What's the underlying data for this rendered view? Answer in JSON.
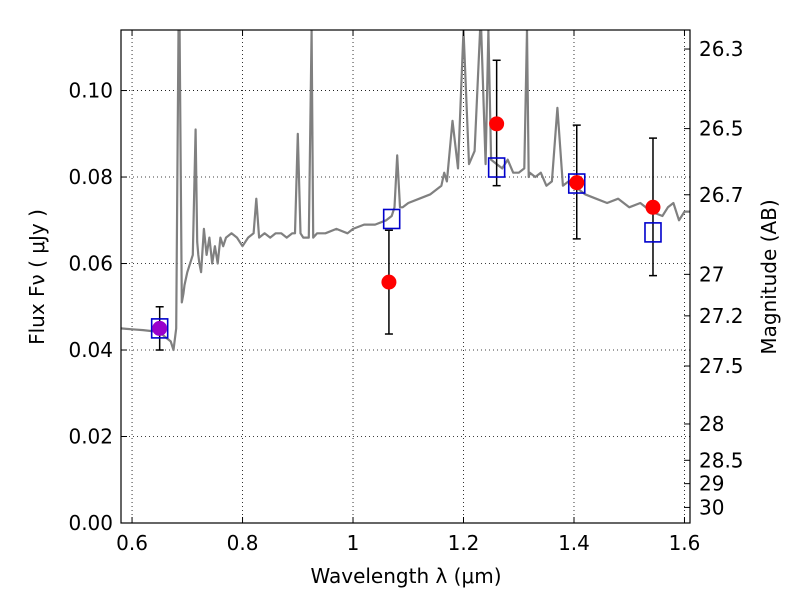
{
  "chart_data": {
    "type": "scatter",
    "xlabel": "Wavelength  λ (μm)",
    "ylabel": "Flux  Fν  ( μJy )",
    "y2label": "Magnitude (AB)",
    "xlim": [
      0.58,
      1.61
    ],
    "ylim": [
      0.0,
      0.114
    ],
    "grid": true,
    "xticks": [
      0.6,
      0.8,
      1.0,
      1.2,
      1.4,
      1.6
    ],
    "xtick_labels": [
      "0.6",
      "0.8",
      "1",
      "1.2",
      "1.4",
      "1.6"
    ],
    "yticks": [
      0.0,
      0.02,
      0.04,
      0.06,
      0.08,
      0.1
    ],
    "ytick_labels": [
      "0.00",
      "0.02",
      "0.04",
      "0.06",
      "0.08",
      "0.10"
    ],
    "y2ticks": [
      {
        "label": "26.3",
        "flux": 0.1096
      },
      {
        "label": "26.5",
        "flux": 0.0912
      },
      {
        "label": "26.7",
        "flux": 0.0759
      },
      {
        "label": "27",
        "flux": 0.0575
      },
      {
        "label": "27.2",
        "flux": 0.0479
      },
      {
        "label": "27.5",
        "flux": 0.0363
      },
      {
        "label": "28",
        "flux": 0.0229
      },
      {
        "label": "28.5",
        "flux": 0.0145
      },
      {
        "label": "29",
        "flux": 0.0091
      },
      {
        "label": "30",
        "flux": 0.0036
      }
    ],
    "series": [
      {
        "style": "line",
        "color": "#808080",
        "x": [
          0.58,
          0.6,
          0.62,
          0.64,
          0.65,
          0.66,
          0.67,
          0.675,
          0.68,
          0.684,
          0.686,
          0.69,
          0.693,
          0.695,
          0.7,
          0.71,
          0.715,
          0.718,
          0.72,
          0.722,
          0.725,
          0.73,
          0.735,
          0.74,
          0.745,
          0.75,
          0.755,
          0.76,
          0.765,
          0.77,
          0.78,
          0.79,
          0.8,
          0.81,
          0.82,
          0.825,
          0.83,
          0.84,
          0.85,
          0.86,
          0.87,
          0.88,
          0.89,
          0.895,
          0.9,
          0.905,
          0.91,
          0.92,
          0.925,
          0.928,
          0.935,
          0.95,
          0.97,
          0.99,
          1.0,
          1.02,
          1.04,
          1.06,
          1.07,
          1.075,
          1.08,
          1.085,
          1.09,
          1.1,
          1.12,
          1.14,
          1.15,
          1.16,
          1.165,
          1.17,
          1.18,
          1.19,
          1.2,
          1.21,
          1.22,
          1.23,
          1.232,
          1.24,
          1.245,
          1.25,
          1.26,
          1.27,
          1.28,
          1.29,
          1.3,
          1.31,
          1.315,
          1.318,
          1.32,
          1.33,
          1.34,
          1.35,
          1.36,
          1.37,
          1.38,
          1.39,
          1.4,
          1.41,
          1.42,
          1.44,
          1.46,
          1.48,
          1.5,
          1.52,
          1.54,
          1.56,
          1.57,
          1.58,
          1.59,
          1.6,
          1.61
        ],
        "y": [
          0.045,
          0.0448,
          0.0446,
          0.0443,
          0.0441,
          0.043,
          0.042,
          0.04,
          0.045,
          0.114,
          0.114,
          0.051,
          0.053,
          0.055,
          0.058,
          0.062,
          0.091,
          0.065,
          0.062,
          0.06,
          0.058,
          0.068,
          0.062,
          0.066,
          0.06,
          0.064,
          0.06,
          0.066,
          0.064,
          0.066,
          0.067,
          0.066,
          0.064,
          0.066,
          0.067,
          0.075,
          0.066,
          0.067,
          0.066,
          0.067,
          0.067,
          0.066,
          0.067,
          0.067,
          0.09,
          0.067,
          0.066,
          0.066,
          0.114,
          0.066,
          0.067,
          0.067,
          0.068,
          0.067,
          0.068,
          0.069,
          0.069,
          0.07,
          0.071,
          0.073,
          0.085,
          0.073,
          0.073,
          0.074,
          0.075,
          0.076,
          0.077,
          0.078,
          0.081,
          0.079,
          0.093,
          0.082,
          0.114,
          0.083,
          0.086,
          0.114,
          0.114,
          0.083,
          0.114,
          0.084,
          0.083,
          0.082,
          0.084,
          0.081,
          0.081,
          0.082,
          0.114,
          0.08,
          0.081,
          0.08,
          0.081,
          0.078,
          0.079,
          0.096,
          0.078,
          0.079,
          0.078,
          0.077,
          0.076,
          0.075,
          0.074,
          0.075,
          0.073,
          0.074,
          0.072,
          0.071,
          0.073,
          0.074,
          0.07,
          0.072,
          0.072
        ]
      },
      {
        "style": "points",
        "marker": "filled-circle",
        "color": "#ff0000",
        "x": [
          0.65,
          1.065,
          1.26,
          1.405,
          1.543
        ],
        "y": [
          0.045,
          0.0557,
          0.0923,
          0.0787,
          0.073
        ],
        "yerr_low": [
          0.005,
          0.012,
          0.0143,
          0.013,
          0.0158
        ],
        "yerr_high": [
          0.005,
          0.012,
          0.0147,
          0.0133,
          0.016
        ]
      },
      {
        "style": "points",
        "marker": "open-square",
        "color": "#0000cc",
        "x": [
          0.65,
          1.07,
          1.26,
          1.405,
          1.543
        ],
        "y": [
          0.045,
          0.0703,
          0.0822,
          0.0785,
          0.0672
        ]
      }
    ],
    "overlap_color": "#9900cc"
  }
}
